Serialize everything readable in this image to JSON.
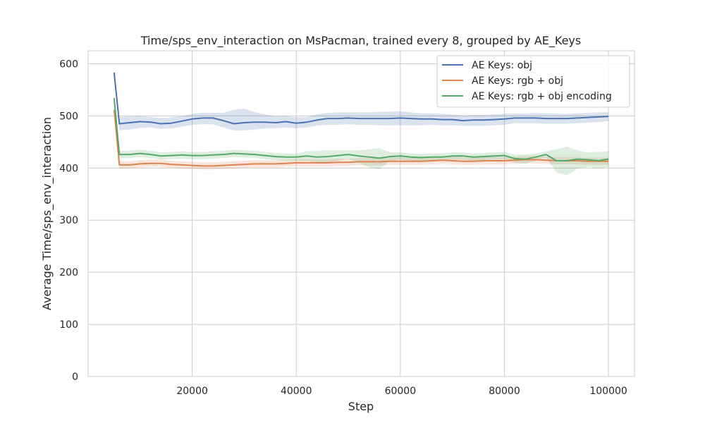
{
  "chart_data": {
    "type": "line",
    "title": "Time/sps_env_interaction on MsPacman, trained every 8, grouped by AE_Keys",
    "xlabel": "Step",
    "ylabel": "Average Time/sps_env_interaction",
    "xlim": [
      0,
      105000
    ],
    "ylim": [
      0,
      625
    ],
    "x_ticks": [
      20000,
      40000,
      60000,
      80000,
      100000
    ],
    "y_ticks": [
      0,
      100,
      200,
      300,
      400,
      500,
      600
    ],
    "grid": true,
    "legend_position": "top-right",
    "x": [
      5000,
      6000,
      8000,
      10000,
      12000,
      14000,
      16000,
      18000,
      20000,
      22000,
      24000,
      26000,
      28000,
      30000,
      32000,
      34000,
      36000,
      38000,
      40000,
      42000,
      44000,
      46000,
      48000,
      50000,
      52000,
      54000,
      56000,
      58000,
      60000,
      62000,
      64000,
      66000,
      68000,
      70000,
      72000,
      74000,
      76000,
      78000,
      80000,
      82000,
      84000,
      86000,
      88000,
      90000,
      92000,
      94000,
      96000,
      98000,
      100000
    ],
    "series": [
      {
        "name": "AE Keys: obj",
        "color": "#4c72b0",
        "values": [
          583,
          485,
          487,
          489,
          488,
          485,
          486,
          490,
          494,
          496,
          496,
          491,
          485,
          487,
          488,
          488,
          487,
          489,
          486,
          488,
          492,
          495,
          495,
          496,
          495,
          495,
          495,
          495,
          496,
          495,
          494,
          494,
          493,
          493,
          491,
          492,
          492,
          493,
          494,
          496,
          496,
          496,
          495,
          495,
          495,
          496,
          497,
          498,
          499
        ],
        "upper": [
          590,
          498,
          499,
          500,
          498,
          496,
          497,
          500,
          504,
          506,
          506,
          506,
          512,
          514,
          507,
          503,
          499,
          500,
          497,
          498,
          503,
          506,
          507,
          507,
          507,
          507,
          508,
          508,
          509,
          507,
          505,
          505,
          504,
          503,
          501,
          502,
          502,
          503,
          504,
          505,
          505,
          506,
          505,
          504,
          504,
          505,
          506,
          507,
          507
        ],
        "lower": [
          570,
          472,
          474,
          477,
          478,
          475,
          476,
          479,
          483,
          484,
          484,
          478,
          472,
          472,
          474,
          476,
          476,
          478,
          476,
          478,
          481,
          483,
          483,
          484,
          483,
          483,
          482,
          482,
          482,
          482,
          482,
          483,
          482,
          482,
          481,
          481,
          481,
          482,
          483,
          486,
          486,
          486,
          485,
          485,
          485,
          486,
          487,
          488,
          490
        ]
      },
      {
        "name": "AE Keys: rgb + obj",
        "color": "#dd8452",
        "values": [
          512,
          406,
          406,
          408,
          409,
          409,
          407,
          406,
          405,
          404,
          404,
          405,
          406,
          407,
          408,
          408,
          408,
          409,
          410,
          410,
          410,
          410,
          411,
          411,
          412,
          412,
          412,
          413,
          413,
          413,
          413,
          414,
          415,
          414,
          413,
          413,
          414,
          414,
          414,
          415,
          416,
          416,
          415,
          414,
          414,
          414,
          413,
          413,
          413
        ],
        "upper": [
          518,
          413,
          413,
          415,
          416,
          416,
          414,
          413,
          412,
          411,
          411,
          412,
          413,
          414,
          415,
          415,
          415,
          416,
          417,
          417,
          417,
          417,
          418,
          418,
          419,
          419,
          419,
          420,
          420,
          420,
          420,
          421,
          422,
          421,
          420,
          420,
          421,
          421,
          421,
          422,
          423,
          423,
          422,
          421,
          421,
          421,
          420,
          420,
          420
        ],
        "lower": [
          506,
          399,
          399,
          401,
          402,
          402,
          400,
          399,
          398,
          397,
          397,
          398,
          399,
          400,
          401,
          401,
          401,
          402,
          403,
          403,
          403,
          403,
          404,
          404,
          405,
          405,
          405,
          406,
          406,
          406,
          406,
          407,
          408,
          407,
          406,
          406,
          407,
          407,
          407,
          408,
          409,
          409,
          408,
          407,
          407,
          407,
          406,
          406,
          406
        ]
      },
      {
        "name": "AE Keys: rgb + obj encoding",
        "color": "#55a868",
        "values": [
          534,
          426,
          426,
          428,
          426,
          423,
          424,
          425,
          424,
          424,
          425,
          426,
          428,
          427,
          426,
          424,
          422,
          421,
          421,
          423,
          421,
          422,
          424,
          426,
          423,
          421,
          419,
          422,
          423,
          421,
          420,
          421,
          421,
          423,
          423,
          421,
          422,
          423,
          424,
          418,
          417,
          421,
          426,
          414,
          414,
          417,
          416,
          414,
          417
        ],
        "upper": [
          541,
          433,
          433,
          435,
          433,
          430,
          431,
          432,
          431,
          431,
          432,
          433,
          435,
          434,
          433,
          431,
          429,
          428,
          428,
          432,
          433,
          434,
          434,
          434,
          434,
          436,
          438,
          430,
          430,
          428,
          427,
          428,
          428,
          430,
          430,
          428,
          429,
          430,
          431,
          426,
          426,
          428,
          432,
          436,
          441,
          434,
          430,
          431,
          432
        ],
        "lower": [
          527,
          419,
          419,
          421,
          419,
          416,
          417,
          418,
          417,
          417,
          418,
          419,
          421,
          420,
          419,
          417,
          415,
          414,
          414,
          414,
          411,
          411,
          414,
          418,
          410,
          401,
          397,
          414,
          416,
          414,
          413,
          414,
          414,
          416,
          416,
          414,
          415,
          416,
          417,
          410,
          408,
          414,
          420,
          392,
          386,
          398,
          402,
          399,
          402
        ]
      }
    ]
  }
}
